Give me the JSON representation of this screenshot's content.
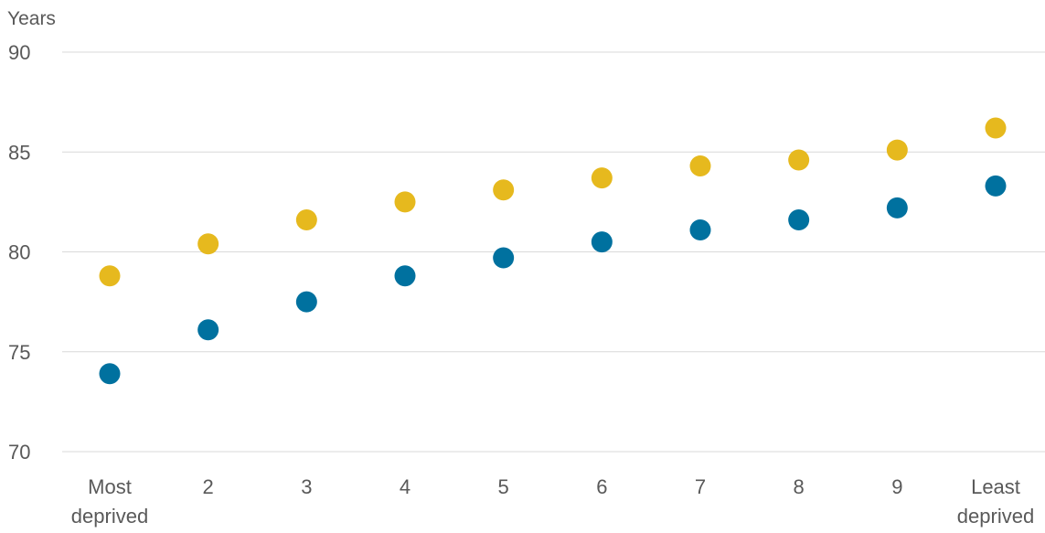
{
  "chart_data": {
    "type": "scatter",
    "title": "",
    "xlabel": "",
    "ylabel": "Years",
    "categories": [
      "Most deprived",
      "2",
      "3",
      "4",
      "5",
      "6",
      "7",
      "8",
      "9",
      "Least deprived"
    ],
    "y_ticks": [
      "70",
      "75",
      "80",
      "85",
      "90"
    ],
    "ylim": [
      70,
      90
    ],
    "grid": true,
    "legend": "none",
    "series": [
      {
        "color": "#e6b91e",
        "values": [
          78.8,
          80.4,
          81.6,
          82.5,
          83.1,
          83.7,
          84.3,
          84.6,
          85.1,
          86.2
        ]
      },
      {
        "color": "#00719f",
        "values": [
          73.9,
          76.1,
          77.5,
          78.8,
          79.7,
          80.5,
          81.1,
          81.6,
          82.2,
          83.3
        ]
      }
    ]
  }
}
